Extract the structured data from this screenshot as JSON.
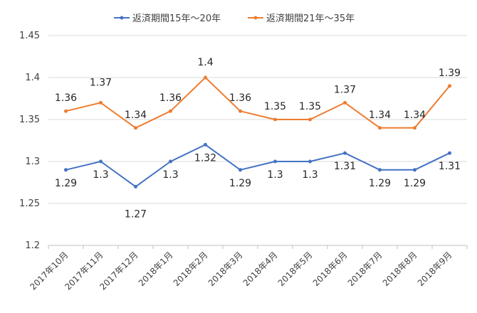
{
  "chart_data": {
    "type": "line",
    "categories": [
      "2017年10月",
      "2017年11月",
      "2017年12月",
      "2018年1月",
      "2018年2月",
      "2018年3月",
      "2018年4月",
      "2018年5月",
      "2018年6月",
      "2018年7月",
      "2018年8月",
      "2018年9月"
    ],
    "series": [
      {
        "name": "返済期間15年～20年",
        "color": "#4472c4",
        "values": [
          1.29,
          1.3,
          1.27,
          1.3,
          1.32,
          1.29,
          1.3,
          1.3,
          1.31,
          1.29,
          1.29,
          1.31
        ],
        "labels": [
          "1.29",
          "1.3",
          "1.27",
          "1.3",
          "1.32",
          "1.29",
          "1.3",
          "1.3",
          "1.31",
          "1.29",
          "1.29",
          "1.31"
        ]
      },
      {
        "name": "返済期間21年～35年",
        "color": "#ed7d31",
        "values": [
          1.36,
          1.37,
          1.34,
          1.36,
          1.4,
          1.36,
          1.35,
          1.35,
          1.37,
          1.34,
          1.34,
          1.39
        ],
        "labels": [
          "1.36",
          "1.37",
          "1.34",
          "1.36",
          "1.4",
          "1.36",
          "1.35",
          "1.35",
          "1.37",
          "1.34",
          "1.34",
          "1.39"
        ]
      }
    ],
    "yticks": [
      "1.2",
      "1.25",
      "1.3",
      "1.35",
      "1.4",
      "1.45"
    ],
    "ylim": [
      1.2,
      1.45
    ],
    "grid": true,
    "legend": "top-center",
    "title": "",
    "xlabel": "",
    "ylabel": ""
  }
}
